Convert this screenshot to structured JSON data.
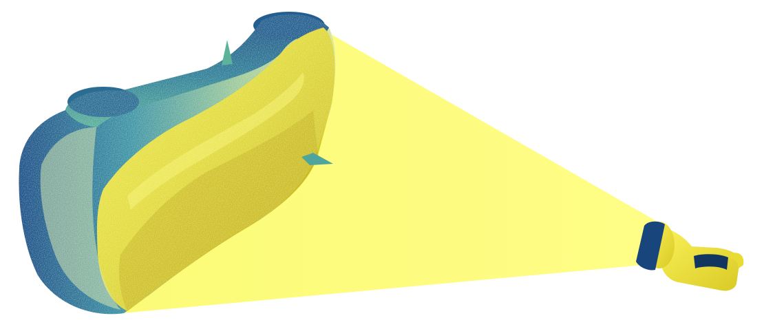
{
  "scene": {
    "subject": "point-cloud-scan",
    "device": "handheld-scanner",
    "colors": {
      "background": "#ffffff",
      "light_cone": "#fdfd7c",
      "surface_lit": "#e0dc3c",
      "surface_shadow": "#bfb21e",
      "surface_highlight": "#f1ee56",
      "edge_teal": "#3aa5a0",
      "edge_blue": "#1c4f86",
      "edge_light": "#d5e6a8",
      "scanner_body": "#f0e63a",
      "scanner_ring": "#17457c"
    }
  }
}
